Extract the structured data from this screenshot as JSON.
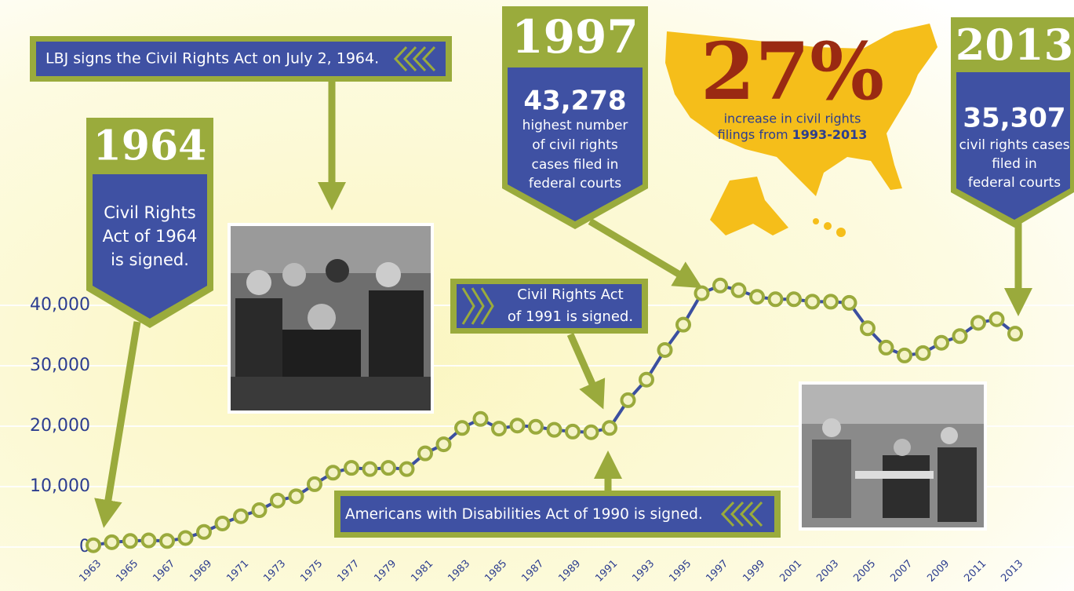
{
  "chart_data": {
    "type": "line",
    "x": [
      1963,
      1964,
      1965,
      1966,
      1967,
      1968,
      1969,
      1970,
      1971,
      1972,
      1973,
      1974,
      1975,
      1976,
      1977,
      1978,
      1979,
      1980,
      1981,
      1982,
      1983,
      1984,
      1985,
      1986,
      1987,
      1988,
      1989,
      1990,
      1991,
      1992,
      1993,
      1994,
      1995,
      1996,
      1997,
      1998,
      1999,
      2000,
      2001,
      2002,
      2003,
      2004,
      2005,
      2006,
      2007,
      2008,
      2009,
      2010,
      2011,
      2012,
      2013
    ],
    "values": [
      300,
      800,
      1000,
      1100,
      1000,
      1500,
      2500,
      3900,
      5100,
      6100,
      7700,
      8400,
      10400,
      12300,
      13100,
      12900,
      13100,
      12900,
      15500,
      17000,
      19700,
      21200,
      19600,
      20100,
      19900,
      19400,
      19100,
      19000,
      19700,
      24300,
      27700,
      32600,
      36800,
      42000,
      43278,
      42500,
      41400,
      41000,
      41000,
      40600,
      40600,
      40400,
      36200,
      33000,
      31700,
      32100,
      33800,
      34900,
      37100,
      37700,
      35307
    ],
    "color": "#3b4fa0",
    "marker_color": "#9aaa3c",
    "xlim": [
      1963,
      2013
    ],
    "xticks": [
      1963,
      1965,
      1967,
      1969,
      1971,
      1973,
      1975,
      1977,
      1979,
      1981,
      1983,
      1985,
      1987,
      1989,
      1991,
      1993,
      1995,
      1997,
      1999,
      2001,
      2003,
      2005,
      2007,
      2009,
      2011,
      2013
    ],
    "ylim": [
      0,
      45000
    ],
    "yticks": [
      0,
      {
        "value": 10000,
        "label": "10,000"
      },
      {
        "value": 20000,
        "label": "20,000"
      },
      {
        "value": 30000,
        "label": "30,000"
      },
      {
        "value": 40000,
        "label": "40,000"
      }
    ],
    "grid": true,
    "annotations": [
      {
        "year": "1964",
        "lines": [
          "Civil Rights",
          "Act of 1964",
          "is signed."
        ]
      },
      {
        "text": "LBJ signs the Civil Rights Act on July 2, 1964."
      },
      {
        "year": "1997",
        "number": "43,278",
        "lines": [
          "highest number",
          "of civil rights",
          "cases filed in",
          "federal courts"
        ]
      },
      {
        "percent": "27%",
        "lines": [
          "increase in civil rights",
          "filings from"
        ],
        "bold": "1993-2013"
      },
      {
        "year": "2013",
        "number": "35,307",
        "lines": [
          "civil rights cases",
          "filed in",
          "federal courts"
        ]
      },
      {
        "lines": [
          "Civil Rights Act",
          "of 1991 is signed."
        ]
      },
      {
        "text": "Americans with Disabilities Act of 1990 is signed."
      }
    ]
  }
}
